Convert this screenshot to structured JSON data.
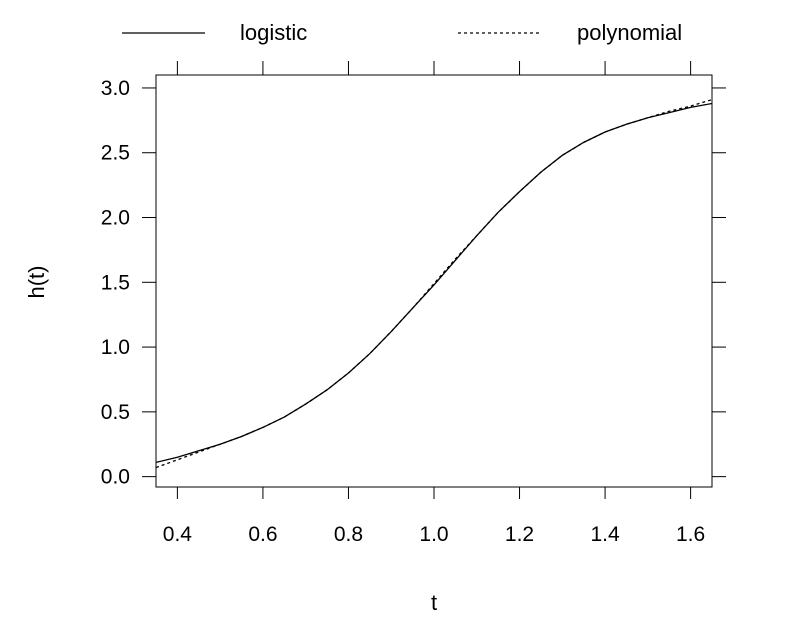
{
  "chart_data": {
    "type": "line",
    "title": "",
    "xlabel": "t",
    "ylabel": "h(t)",
    "xlim": [
      0.35,
      1.65
    ],
    "ylim": [
      -0.08,
      3.1
    ],
    "x_ticks": [
      0.4,
      0.6,
      0.8,
      1.0,
      1.2,
      1.4,
      1.6
    ],
    "x_tick_labels": [
      "0.4",
      "0.6",
      "0.8",
      "1.0",
      "1.2",
      "1.4",
      "1.6"
    ],
    "y_ticks": [
      0.0,
      0.5,
      1.0,
      1.5,
      2.0,
      2.5,
      3.0
    ],
    "y_tick_labels": [
      "0.0",
      "0.5",
      "1.0",
      "1.5",
      "2.0",
      "2.5",
      "3.0"
    ],
    "grid": false,
    "legend_position": "top",
    "series": [
      {
        "name": "logistic",
        "line_style": "solid",
        "color": "#000000",
        "x": [
          0.35,
          0.4,
          0.45,
          0.5,
          0.55,
          0.6,
          0.65,
          0.7,
          0.75,
          0.8,
          0.85,
          0.9,
          0.95,
          1.0,
          1.05,
          1.1,
          1.15,
          1.2,
          1.25,
          1.3,
          1.35,
          1.4,
          1.45,
          1.5,
          1.55,
          1.6,
          1.65
        ],
        "y": [
          0.11,
          0.15,
          0.2,
          0.25,
          0.31,
          0.38,
          0.46,
          0.56,
          0.67,
          0.8,
          0.95,
          1.12,
          1.3,
          1.48,
          1.67,
          1.86,
          2.04,
          2.2,
          2.35,
          2.48,
          2.58,
          2.66,
          2.72,
          2.77,
          2.81,
          2.85,
          2.88
        ]
      },
      {
        "name": "polynomial",
        "line_style": "dashed",
        "color": "#000000",
        "x": [
          0.35,
          0.4,
          0.45,
          0.5,
          0.55,
          0.6,
          0.65,
          0.7,
          0.75,
          0.8,
          0.85,
          0.9,
          0.95,
          1.0,
          1.05,
          1.1,
          1.15,
          1.2,
          1.25,
          1.3,
          1.35,
          1.4,
          1.45,
          1.5,
          1.55,
          1.6,
          1.65
        ],
        "y": [
          0.07,
          0.13,
          0.19,
          0.25,
          0.31,
          0.38,
          0.46,
          0.56,
          0.67,
          0.8,
          0.95,
          1.12,
          1.3,
          1.49,
          1.68,
          1.86,
          2.04,
          2.2,
          2.35,
          2.48,
          2.58,
          2.66,
          2.72,
          2.77,
          2.82,
          2.86,
          2.91
        ]
      }
    ]
  }
}
